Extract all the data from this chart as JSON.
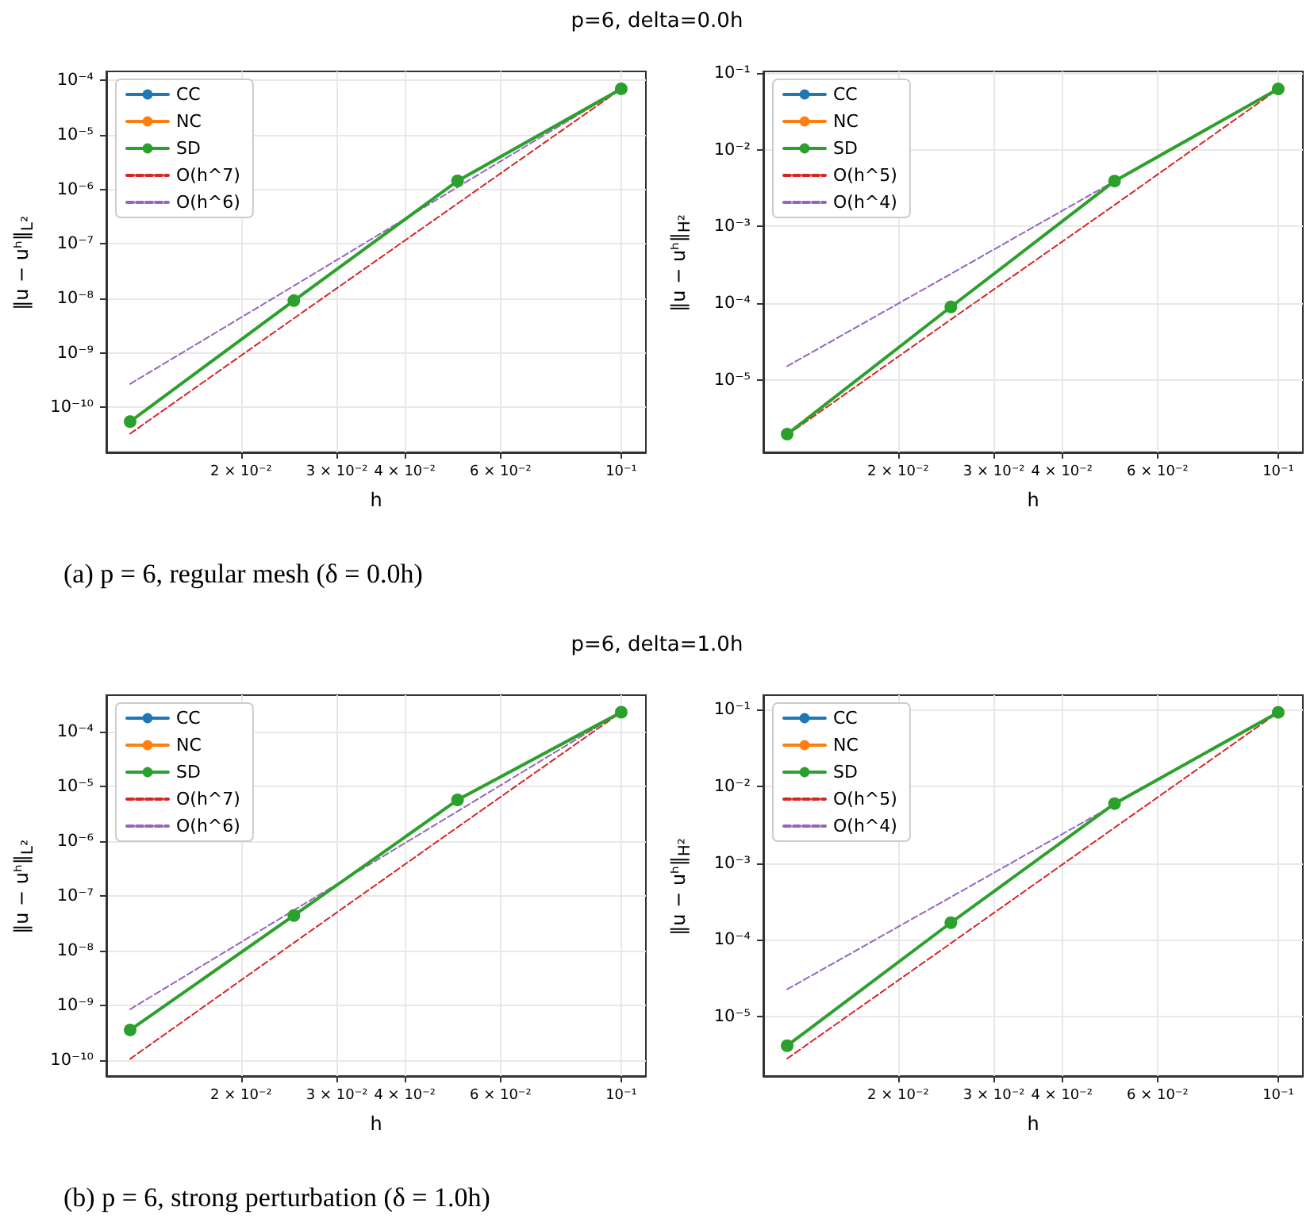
{
  "chart_data": [
    {
      "type": "line",
      "title": "p=6, delta=0.0h",
      "xlabel": "h",
      "ylabel": "‖u − uʰ‖$_{L²}$",
      "log": "xy",
      "grid": true,
      "legend": "top left",
      "annotations": [
        "(a) p = 6, regular mesh (δ = 0.0h)"
      ],
      "x": [
        0.0125,
        0.025,
        0.05,
        0.1
      ],
      "xlim": [
        0.0113,
        0.111
      ],
      "xticks": [
        {
          "value": 0.02,
          "label": "2 × 10⁻²"
        },
        {
          "value": 0.03,
          "label": "3 × 10⁻²"
        },
        {
          "value": 0.04,
          "label": "4 × 10⁻²"
        },
        {
          "value": 0.06,
          "label": "6 × 10⁻²"
        },
        {
          "value": 0.1,
          "label": "10⁻¹"
        }
      ],
      "ylim": [
        1.5e-11,
        0.000146
      ],
      "yticks": [
        {
          "value": 1e-10,
          "label": "10⁻¹⁰"
        },
        {
          "value": 1e-09,
          "label": "10⁻⁹"
        },
        {
          "value": 1e-08,
          "label": "10⁻⁸"
        },
        {
          "value": 1e-07,
          "label": "10⁻⁷"
        },
        {
          "value": 1e-06,
          "label": "10⁻⁶"
        },
        {
          "value": 1e-05,
          "label": "10⁻⁵"
        },
        {
          "value": 0.0001,
          "label": "10⁻⁴"
        }
      ],
      "series": [
        {
          "name": "CC",
          "color": "#1f77b4",
          "marker": "circle",
          "line_style": "solid",
          "values": [
            null,
            null,
            null,
            null
          ]
        },
        {
          "name": "NC",
          "color": "#ff7f0e",
          "marker": "circle",
          "line_style": "solid",
          "values": [
            null,
            null,
            null,
            null
          ]
        },
        {
          "name": "SD",
          "color": "#2ca02c",
          "marker": "circle",
          "line_style": "solid",
          "values": [
            5.5e-11,
            9.1e-09,
            1.43e-06,
            7e-05
          ]
        },
        {
          "name": "O(h^7)",
          "color": "#d62728",
          "marker": "none",
          "line_style": "dashed",
          "values": [
            3.3e-11,
            4.3e-09,
            5.5e-07,
            7e-05
          ]
        },
        {
          "name": "O(h^6)",
          "color": "#9467bd",
          "marker": "none",
          "line_style": "dashed",
          "values": [
            2.7e-10,
            1.7e-08,
            1.1e-06,
            7e-05
          ]
        }
      ]
    },
    {
      "type": "line",
      "xlabel": "h",
      "ylabel": "‖u − uʰ‖$_{H²}$",
      "log": "xy",
      "grid": true,
      "legend": "top left",
      "x": [
        0.0125,
        0.025,
        0.05,
        0.1
      ],
      "xlim": [
        0.0113,
        0.111
      ],
      "xticks": [
        {
          "value": 0.02,
          "label": "2 × 10⁻²"
        },
        {
          "value": 0.03,
          "label": "3 × 10⁻²"
        },
        {
          "value": 0.04,
          "label": "4 × 10⁻²"
        },
        {
          "value": 0.06,
          "label": "6 × 10⁻²"
        },
        {
          "value": 0.1,
          "label": "10⁻¹"
        }
      ],
      "ylim": [
        1.13e-06,
        0.105
      ],
      "yticks": [
        {
          "value": 1e-05,
          "label": "10⁻⁵"
        },
        {
          "value": 0.0001,
          "label": "10⁻⁴"
        },
        {
          "value": 0.001,
          "label": "10⁻³"
        },
        {
          "value": 0.01,
          "label": "10⁻²"
        },
        {
          "value": 0.1,
          "label": "10⁻¹"
        }
      ],
      "series": [
        {
          "name": "CC",
          "color": "#1f77b4",
          "marker": "circle",
          "line_style": "solid",
          "values": [
            null,
            null,
            null,
            null
          ]
        },
        {
          "name": "NC",
          "color": "#ff7f0e",
          "marker": "circle",
          "line_style": "solid",
          "values": [
            null,
            null,
            null,
            null
          ]
        },
        {
          "name": "SD",
          "color": "#2ca02c",
          "marker": "circle",
          "line_style": "solid",
          "values": [
            1.95e-06,
            8.9e-05,
            0.0039,
            0.062
          ]
        },
        {
          "name": "O(h^5)",
          "color": "#d62728",
          "marker": "none",
          "line_style": "dashed",
          "values": [
            1.9e-06,
            6.1e-05,
            0.0019,
            0.062
          ]
        },
        {
          "name": "O(h^4)",
          "color": "#9467bd",
          "marker": "none",
          "line_style": "dashed",
          "values": [
            1.5e-05,
            0.00024,
            0.0039,
            0.062
          ]
        }
      ]
    },
    {
      "type": "line",
      "title": "p=6, delta=1.0h",
      "xlabel": "h",
      "ylabel": "‖u − uʰ‖$_{L²}$",
      "log": "xy",
      "grid": true,
      "legend": "top left",
      "annotations": [
        "(b) p = 6, strong perturbation (δ = 1.0h)"
      ],
      "x": [
        0.0125,
        0.025,
        0.05,
        0.1
      ],
      "xlim": [
        0.0113,
        0.111
      ],
      "xticks": [
        {
          "value": 0.02,
          "label": "2 × 10⁻²"
        },
        {
          "value": 0.03,
          "label": "3 × 10⁻²"
        },
        {
          "value": 0.04,
          "label": "4 × 10⁻²"
        },
        {
          "value": 0.06,
          "label": "6 × 10⁻²"
        },
        {
          "value": 0.1,
          "label": "10⁻¹"
        }
      ],
      "ylim": [
        5.2e-11,
        0.00046
      ],
      "yticks": [
        {
          "value": 1e-10,
          "label": "10⁻¹⁰"
        },
        {
          "value": 1e-09,
          "label": "10⁻⁹"
        },
        {
          "value": 1e-08,
          "label": "10⁻⁸"
        },
        {
          "value": 1e-07,
          "label": "10⁻⁷"
        },
        {
          "value": 1e-06,
          "label": "10⁻⁶"
        },
        {
          "value": 1e-05,
          "label": "10⁻⁵"
        },
        {
          "value": 0.0001,
          "label": "10⁻⁴"
        }
      ],
      "series": [
        {
          "name": "CC",
          "color": "#1f77b4",
          "marker": "circle",
          "line_style": "solid",
          "values": [
            null,
            null,
            null,
            null
          ]
        },
        {
          "name": "NC",
          "color": "#ff7f0e",
          "marker": "circle",
          "line_style": "solid",
          "values": [
            null,
            null,
            null,
            null
          ]
        },
        {
          "name": "SD",
          "color": "#2ca02c",
          "marker": "circle",
          "line_style": "solid",
          "values": [
            3.6e-10,
            4.4e-08,
            5.65e-06,
            0.000225
          ]
        },
        {
          "name": "O(h^7)",
          "color": "#d62728",
          "marker": "none",
          "line_style": "dashed",
          "values": [
            1.07e-10,
            1.4e-08,
            1.8e-06,
            0.000225
          ]
        },
        {
          "name": "O(h^6)",
          "color": "#9467bd",
          "marker": "none",
          "line_style": "dashed",
          "values": [
            8.6e-10,
            5.5e-08,
            3.5e-06,
            0.000225
          ]
        }
      ]
    },
    {
      "type": "line",
      "xlabel": "h",
      "ylabel": "‖u − uʰ‖$_{H²}$",
      "log": "xy",
      "grid": true,
      "legend": "top left",
      "x": [
        0.0125,
        0.025,
        0.05,
        0.1
      ],
      "xlim": [
        0.0113,
        0.111
      ],
      "xticks": [
        {
          "value": 0.02,
          "label": "2 × 10⁻²"
        },
        {
          "value": 0.03,
          "label": "3 × 10⁻²"
        },
        {
          "value": 0.04,
          "label": "4 × 10⁻²"
        },
        {
          "value": 0.06,
          "label": "6 × 10⁻²"
        },
        {
          "value": 0.1,
          "label": "10⁻¹"
        }
      ],
      "ylim": [
        1.67e-06,
        0.155
      ],
      "yticks": [
        {
          "value": 1e-05,
          "label": "10⁻⁵"
        },
        {
          "value": 0.0001,
          "label": "10⁻⁴"
        },
        {
          "value": 0.001,
          "label": "10⁻³"
        },
        {
          "value": 0.01,
          "label": "10⁻²"
        },
        {
          "value": 0.1,
          "label": "10⁻¹"
        }
      ],
      "series": [
        {
          "name": "CC",
          "color": "#1f77b4",
          "marker": "circle",
          "line_style": "solid",
          "values": [
            null,
            null,
            null,
            null
          ]
        },
        {
          "name": "NC",
          "color": "#ff7f0e",
          "marker": "circle",
          "line_style": "solid",
          "values": [
            null,
            null,
            null,
            null
          ]
        },
        {
          "name": "SD",
          "color": "#2ca02c",
          "marker": "circle",
          "line_style": "solid",
          "values": [
            4.16e-06,
            0.000167,
            0.00597,
            0.0925
          ]
        },
        {
          "name": "O(h^5)",
          "color": "#d62728",
          "marker": "none",
          "line_style": "dashed",
          "values": [
            2.82e-06,
            9e-05,
            0.0029,
            0.0925
          ]
        },
        {
          "name": "O(h^4)",
          "color": "#9467bd",
          "marker": "none",
          "line_style": "dashed",
          "values": [
            2.26e-05,
            0.00036,
            0.0058,
            0.0925
          ]
        }
      ]
    }
  ]
}
